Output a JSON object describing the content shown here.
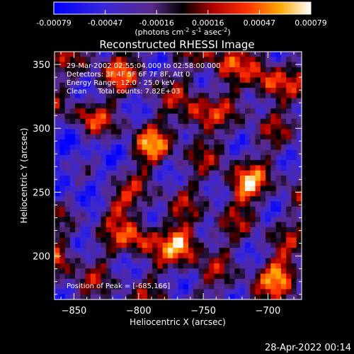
{
  "chart_data": {
    "type": "heatmap",
    "title": "Reconstructed RHESSI Image",
    "xlabel": "Heliocentric X (arcsec)",
    "ylabel": "Heliocentric Y (arcsec)",
    "xlim": [
      -865,
      -674
    ],
    "ylim": [
      166,
      360
    ],
    "x_ticks": [
      -850,
      -800,
      -750,
      -700
    ],
    "y_ticks": [
      200,
      250,
      300,
      350
    ],
    "colorbar": {
      "range": [
        -0.00079,
        0.00079
      ],
      "ticks": [
        "-0.00079",
        "-0.00047",
        "-0.00016",
        "0.00016",
        "0.00047",
        "0.00079"
      ],
      "unit_main": "(photons cm",
      "unit_sup1": "-2",
      "unit_s": " s",
      "unit_sup2": "-1",
      "unit_asec": " asec",
      "unit_sup3": "-2",
      "unit_close": ")"
    },
    "annotations": [
      "29-Mar-2002 02:55:04.000 to 02:58:00.000",
      "Detectors: 3F 4F 5F 6F 7F 8F, Att 0",
      "Energy Range: 12.0 - 25.0 keV",
      "Clean     Total counts: 7.82E+03"
    ],
    "peak_label": "Position of Peak = [-685,166]",
    "peak_position": [
      -685,
      166
    ],
    "hotspots": [
      {
        "x": -840,
        "y": 308,
        "v": 0.6
      },
      {
        "x": -765,
        "y": 210,
        "v": 1.0
      },
      {
        "x": -718,
        "y": 255,
        "v": 0.9
      },
      {
        "x": -700,
        "y": 335,
        "v": 0.8
      },
      {
        "x": -755,
        "y": 310,
        "v": 0.75
      },
      {
        "x": -790,
        "y": 285,
        "v": 0.7
      },
      {
        "x": -820,
        "y": 240,
        "v": 0.65
      },
      {
        "x": -800,
        "y": 215,
        "v": 0.75
      },
      {
        "x": -860,
        "y": 200,
        "v": 0.55
      },
      {
        "x": -690,
        "y": 185,
        "v": 0.85
      },
      {
        "x": -735,
        "y": 350,
        "v": 0.6
      },
      {
        "x": -815,
        "y": 345,
        "v": 0.5
      }
    ]
  },
  "footer_timestamp": "28-Apr-2022 00:14"
}
